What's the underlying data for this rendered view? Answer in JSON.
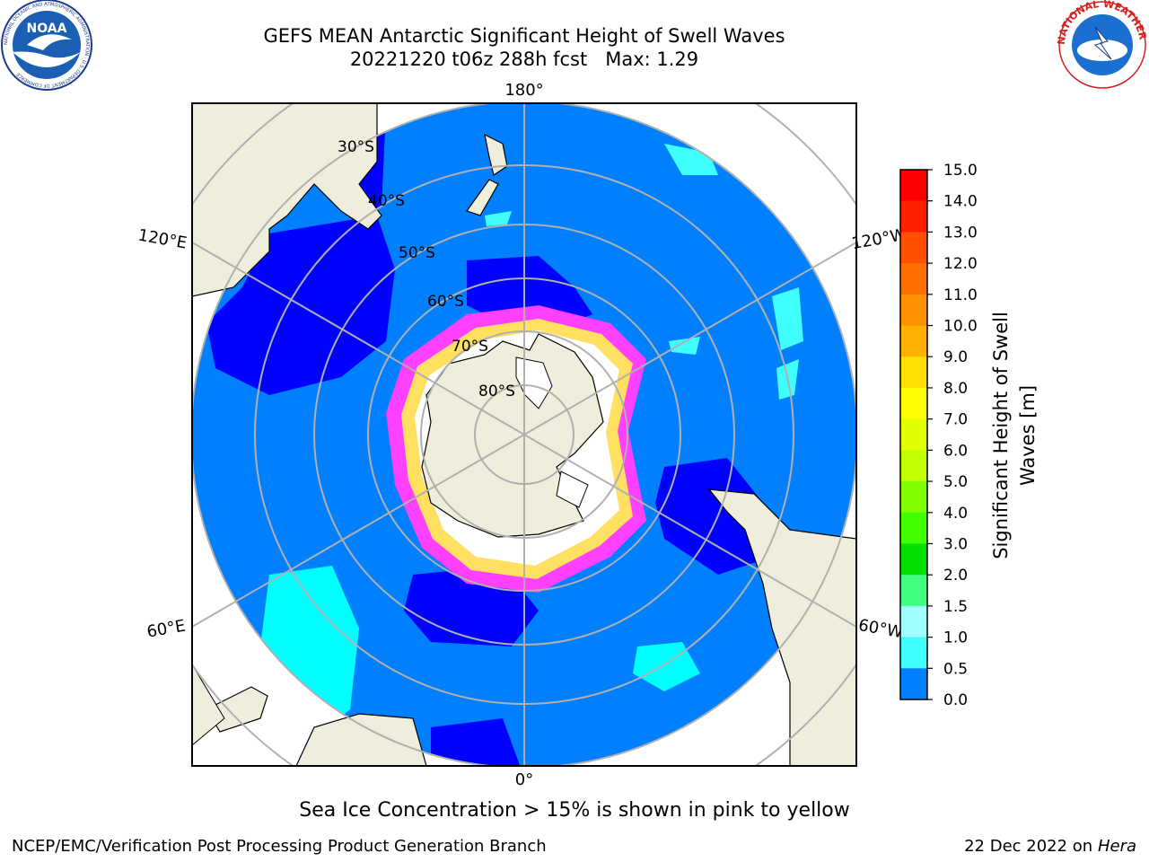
{
  "title": {
    "line1": "GEFS MEAN Antarctic Significant Height of Swell Waves",
    "line2": "20221220 t06z 288h fcst   Max: 1.29"
  },
  "map": {
    "projection": "south-polar-stereographic",
    "longitude_labels": [
      "180°",
      "120°E",
      "120°W",
      "60°E",
      "60°W",
      "0°"
    ],
    "latitude_labels": [
      "30°S",
      "40°S",
      "50°S",
      "60°S",
      "70°S",
      "80°S"
    ],
    "land_color": "#efeedd",
    "ocean_base_color": "#0080ff",
    "note": "Sea Ice Concentration > 15% is shown in pink to yellow"
  },
  "colorbar": {
    "label": "Significant Height of Swell Waves [m]",
    "label_line1": "Significant Height of Swell",
    "label_line2": "Waves [m]",
    "ticks": [
      "15.0",
      "14.0",
      "13.0",
      "12.0",
      "11.0",
      "10.0",
      "9.0",
      "8.0",
      "7.0",
      "6.0",
      "5.0",
      "4.0",
      "3.0",
      "2.0",
      "1.5",
      "1.0",
      "0.5",
      "0.0"
    ],
    "colors_top_to_bottom": [
      "#ff0000",
      "#ff2000",
      "#ff5000",
      "#ff7000",
      "#ff9000",
      "#ffb000",
      "#ffe000",
      "#ffff00",
      "#e0ff00",
      "#c0ff00",
      "#80ff00",
      "#40ff00",
      "#00e000",
      "#40ff80",
      "#a0ffff",
      "#40ffff",
      "#00ffff",
      "#0080ff",
      "#0000ff"
    ]
  },
  "logos": {
    "left_text": "NOAA",
    "left_ring": "NATIONAL OCEANIC AND ATMOSPHERIC ADMINISTRATION · U.S. DEPARTMENT OF COMMERCE",
    "right_ring": "NATIONAL WEATHER SERVICE"
  },
  "footer": {
    "left": "NCEP/EMC/Verification Post Processing Product Generation Branch",
    "right_date": "22 Dec 2022 on",
    "right_host": "Hera"
  }
}
